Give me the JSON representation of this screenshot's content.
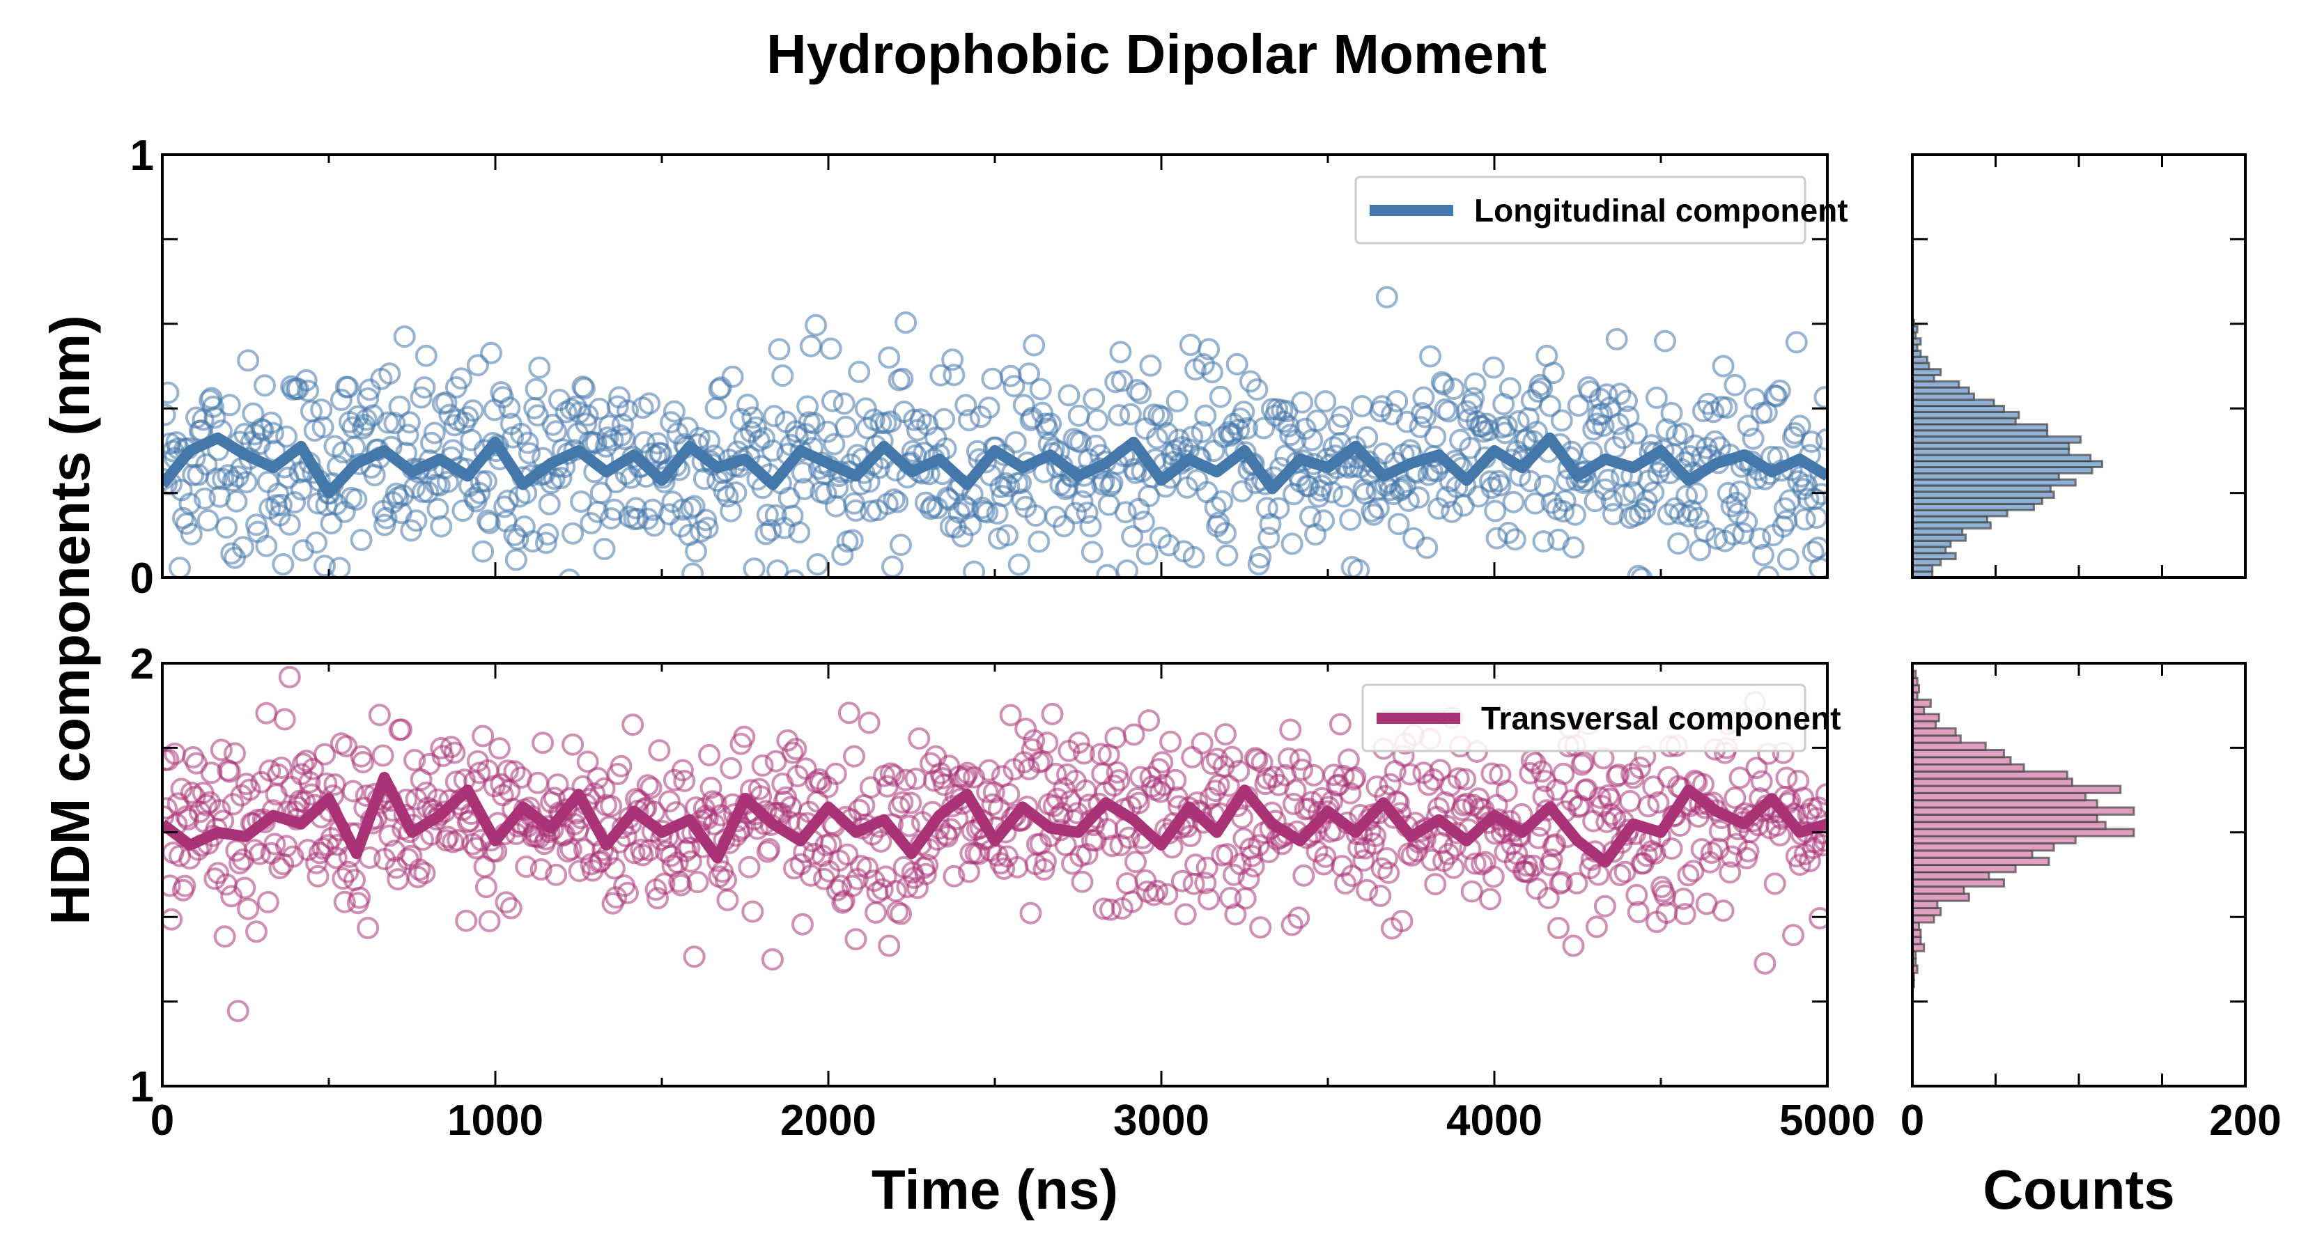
{
  "chart_data": {
    "type": "scatter",
    "title": "Hydrophobic Dipolar Moment",
    "ylabel": "HDM components (nm)",
    "xlabel_main": "Time (ns)",
    "xlabel_hist": "Counts",
    "x_range": [
      0,
      5000
    ],
    "x_ticks": [
      "0",
      "1000",
      "2000",
      "3000",
      "4000",
      "5000"
    ],
    "x_tick_values": [
      0,
      1000,
      2000,
      3000,
      4000,
      5000
    ],
    "hist_x_range": [
      0,
      200
    ],
    "hist_x_ticks": [
      "0",
      "200"
    ],
    "hist_x_tick_values": [
      0,
      200
    ],
    "panels": [
      {
        "name": "Longitudinal component",
        "legend_label": "Longitudinal component",
        "legend_position": "top-right",
        "color": "#4477aa",
        "hist_color": "#8fb1d6",
        "ylim": [
          0,
          1
        ],
        "y_ticks": [
          "0",
          "1"
        ],
        "y_tick_values": [
          0,
          1
        ],
        "scatter_n": 1000,
        "scatter_mean": 0.27,
        "scatter_sd": 0.12,
        "running_average": [
          0.22,
          0.3,
          0.33,
          0.29,
          0.26,
          0.31,
          0.2,
          0.27,
          0.3,
          0.25,
          0.28,
          0.24,
          0.32,
          0.22,
          0.27,
          0.3,
          0.25,
          0.29,
          0.23,
          0.31,
          0.26,
          0.28,
          0.22,
          0.3,
          0.27,
          0.24,
          0.31,
          0.25,
          0.28,
          0.22,
          0.3,
          0.26,
          0.29,
          0.24,
          0.27,
          0.32,
          0.23,
          0.28,
          0.25,
          0.3,
          0.21,
          0.28,
          0.26,
          0.31,
          0.24,
          0.27,
          0.29,
          0.23,
          0.3,
          0.26,
          0.33,
          0.24,
          0.28,
          0.26,
          0.3,
          0.23,
          0.27,
          0.29,
          0.25,
          0.28,
          0.24
        ],
        "hist_bin_start": 0.0,
        "hist_bin_width": 0.0145,
        "hist_counts": [
          12,
          12,
          17,
          26,
          20,
          23,
          32,
          30,
          47,
          45,
          57,
          73,
          78,
          85,
          83,
          98,
          88,
          108,
          114,
          107,
          94,
          94,
          101,
          81,
          81,
          62,
          64,
          55,
          49,
          37,
          34,
          28,
          13,
          17,
          10,
          9,
          5,
          3,
          5,
          2,
          3,
          1
        ]
      },
      {
        "name": "Transversal component",
        "legend_label": "Transversal component",
        "legend_position": "top-right",
        "color": "#aa3377",
        "hist_color": "#e09ec1",
        "ylim": [
          1,
          2
        ],
        "y_ticks": [
          "1",
          "2"
        ],
        "y_tick_values": [
          1,
          2
        ],
        "scatter_n": 1000,
        "scatter_mean": 1.62,
        "scatter_sd": 0.11,
        "running_average": [
          1.62,
          1.57,
          1.6,
          1.59,
          1.64,
          1.62,
          1.68,
          1.55,
          1.73,
          1.6,
          1.64,
          1.7,
          1.58,
          1.66,
          1.61,
          1.69,
          1.57,
          1.65,
          1.6,
          1.63,
          1.54,
          1.68,
          1.62,
          1.58,
          1.66,
          1.6,
          1.63,
          1.55,
          1.64,
          1.69,
          1.58,
          1.66,
          1.61,
          1.6,
          1.67,
          1.63,
          1.57,
          1.66,
          1.6,
          1.7,
          1.62,
          1.58,
          1.65,
          1.6,
          1.67,
          1.59,
          1.63,
          1.58,
          1.64,
          1.6,
          1.66,
          1.58,
          1.53,
          1.62,
          1.6,
          1.7,
          1.65,
          1.62,
          1.68,
          1.6,
          1.62
        ],
        "hist_bin_start": 1.234,
        "hist_bin_width": 0.017,
        "hist_counts": [
          1,
          1,
          3,
          2,
          2,
          7,
          5,
          5,
          4,
          13,
          17,
          15,
          34,
          31,
          55,
          46,
          62,
          82,
          72,
          85,
          98,
          133,
          116,
          111,
          133,
          111,
          104,
          125,
          96,
          93,
          67,
          59,
          55,
          44,
          29,
          26,
          14,
          16,
          7,
          11,
          3,
          4,
          3,
          2
        ]
      }
    ]
  }
}
